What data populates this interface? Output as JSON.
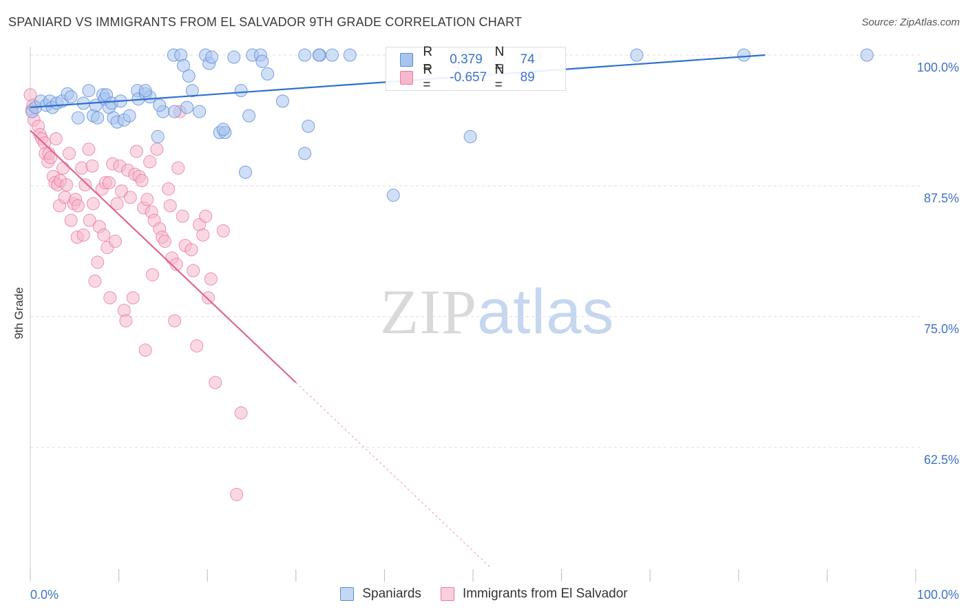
{
  "title": "SPANIARD VS IMMIGRANTS FROM EL SALVADOR 9TH GRADE CORRELATION CHART",
  "source": "Source: ZipAtlas.com",
  "watermark": {
    "zip": "ZIP",
    "atlas": "atlas"
  },
  "legend": {
    "r_label": "R =",
    "n_label": "N =",
    "series1": {
      "r": "0.379",
      "n": "74"
    },
    "series2": {
      "r": "-0.657",
      "n": "89"
    }
  },
  "bottom_legend": {
    "series1": "Spaniards",
    "series2": "Immigrants from El Salvador"
  },
  "colors": {
    "blue_fill": "#a9c5ef",
    "blue_stroke": "#5a8bd6",
    "blue_line": "#2f6fd0",
    "pink_fill": "#f6b8cc",
    "pink_stroke": "#e8799e",
    "pink_line": "#e0648f",
    "grid": "#dddddd",
    "tick_text": "#3f72c8"
  },
  "chart_data": {
    "type": "scatter",
    "title": "SPANIARD VS IMMIGRANTS FROM EL SALVADOR 9TH GRADE CORRELATION CHART",
    "xlabel": "",
    "ylabel": "9th Grade",
    "xlim": [
      0,
      100
    ],
    "ylim": [
      50.5,
      101.5
    ],
    "x_tick_labels": [
      "0.0%",
      "100.0%"
    ],
    "y_ticks": [
      62.5,
      75.0,
      87.5,
      100.0
    ],
    "y_tick_labels": [
      "62.5%",
      "75.0%",
      "87.5%",
      "100.0%"
    ],
    "grid": true,
    "legend_position": "top-center",
    "series": [
      {
        "name": "Spaniards",
        "r": 0.379,
        "n": 74,
        "trend": {
          "x": [
            0,
            83
          ],
          "y": [
            95.0,
            100.0
          ]
        },
        "points": [
          [
            0.2,
            94.6
          ],
          [
            0.6,
            95.0
          ],
          [
            1.2,
            95.6
          ],
          [
            1.8,
            95.2
          ],
          [
            2.2,
            95.6
          ],
          [
            2.5,
            95.0
          ],
          [
            3.0,
            95.4
          ],
          [
            3.6,
            95.6
          ],
          [
            4.2,
            96.3
          ],
          [
            4.6,
            96.0
          ],
          [
            5.4,
            94.0
          ],
          [
            6.0,
            95.4
          ],
          [
            6.6,
            96.6
          ],
          [
            7.1,
            94.2
          ],
          [
            7.4,
            95.2
          ],
          [
            7.6,
            94.0
          ],
          [
            8.2,
            96.2
          ],
          [
            8.4,
            95.8
          ],
          [
            8.6,
            96.2
          ],
          [
            8.9,
            95.0
          ],
          [
            9.2,
            95.4
          ],
          [
            9.4,
            94.0
          ],
          [
            9.8,
            93.6
          ],
          [
            10.2,
            95.6
          ],
          [
            10.6,
            93.8
          ],
          [
            11.2,
            94.2
          ],
          [
            12.1,
            96.6
          ],
          [
            12.2,
            95.8
          ],
          [
            13.0,
            96.3
          ],
          [
            13.5,
            96.0
          ],
          [
            13.0,
            96.6
          ],
          [
            15.0,
            94.6
          ],
          [
            14.4,
            92.2
          ],
          [
            14.6,
            95.2
          ],
          [
            16.2,
            100.0
          ],
          [
            17.0,
            100.0
          ],
          [
            16.3,
            94.6
          ],
          [
            17.3,
            99.0
          ],
          [
            17.9,
            98.0
          ],
          [
            18.3,
            96.6
          ],
          [
            17.7,
            95.0
          ],
          [
            19.1,
            94.6
          ],
          [
            19.8,
            100.0
          ],
          [
            20.2,
            99.2
          ],
          [
            20.5,
            99.8
          ],
          [
            21.4,
            92.6
          ],
          [
            22.0,
            92.6
          ],
          [
            21.8,
            92.9
          ],
          [
            23.0,
            99.8
          ],
          [
            23.8,
            96.6
          ],
          [
            24.3,
            88.8
          ],
          [
            24.7,
            94.2
          ],
          [
            25.1,
            100.0
          ],
          [
            26.0,
            100.0
          ],
          [
            26.2,
            99.4
          ],
          [
            26.8,
            98.2
          ],
          [
            28.5,
            95.6
          ],
          [
            31.0,
            100.0
          ],
          [
            31.4,
            93.2
          ],
          [
            31.0,
            90.6
          ],
          [
            32.7,
            100.0
          ],
          [
            32.6,
            100.0
          ],
          [
            34.1,
            100.0
          ],
          [
            36.1,
            100.0
          ],
          [
            41.0,
            86.6
          ],
          [
            48.0,
            99.4
          ],
          [
            49.0,
            99.0
          ],
          [
            53.0,
            99.4
          ],
          [
            49.5,
            100.0
          ],
          [
            49.7,
            92.2
          ],
          [
            57.0,
            100.0
          ],
          [
            68.5,
            100.0
          ],
          [
            80.6,
            100.0
          ],
          [
            94.5,
            100.0
          ]
        ]
      },
      {
        "name": "Immigrants from El Salvador",
        "r": -0.657,
        "n": 89,
        "trend": {
          "x": [
            0,
            30
          ],
          "y": [
            92.8,
            68.7
          ]
        },
        "trend_dashed": {
          "x": [
            30,
            52
          ],
          "y": [
            68.7,
            51.0
          ]
        },
        "points": [
          [
            0.0,
            96.2
          ],
          [
            0.2,
            94.8
          ],
          [
            0.3,
            95.2
          ],
          [
            0.4,
            93.8
          ],
          [
            0.9,
            93.2
          ],
          [
            1.1,
            92.4
          ],
          [
            1.3,
            92.0
          ],
          [
            1.6,
            91.6
          ],
          [
            1.7,
            90.6
          ],
          [
            2.0,
            89.8
          ],
          [
            2.1,
            90.6
          ],
          [
            2.3,
            90.2
          ],
          [
            2.6,
            88.4
          ],
          [
            2.8,
            87.8
          ],
          [
            2.9,
            92.0
          ],
          [
            3.1,
            87.6
          ],
          [
            3.3,
            85.6
          ],
          [
            3.4,
            88.0
          ],
          [
            3.7,
            89.2
          ],
          [
            3.9,
            86.4
          ],
          [
            4.1,
            87.6
          ],
          [
            4.4,
            90.6
          ],
          [
            4.6,
            84.2
          ],
          [
            4.9,
            85.8
          ],
          [
            5.1,
            86.2
          ],
          [
            5.4,
            85.6
          ],
          [
            5.3,
            82.6
          ],
          [
            5.8,
            89.2
          ],
          [
            6.0,
            82.8
          ],
          [
            6.2,
            87.6
          ],
          [
            6.6,
            91.0
          ],
          [
            6.7,
            84.2
          ],
          [
            7.0,
            89.4
          ],
          [
            7.1,
            85.8
          ],
          [
            7.3,
            78.4
          ],
          [
            7.6,
            80.2
          ],
          [
            7.8,
            83.6
          ],
          [
            8.1,
            87.2
          ],
          [
            8.3,
            82.8
          ],
          [
            8.5,
            87.8
          ],
          [
            8.7,
            81.6
          ],
          [
            8.9,
            87.8
          ],
          [
            9.0,
            76.8
          ],
          [
            9.3,
            89.6
          ],
          [
            9.6,
            82.2
          ],
          [
            9.8,
            85.8
          ],
          [
            10.1,
            89.4
          ],
          [
            10.3,
            87.0
          ],
          [
            10.6,
            75.6
          ],
          [
            10.8,
            74.6
          ],
          [
            11.0,
            89.0
          ],
          [
            11.3,
            86.4
          ],
          [
            11.6,
            76.8
          ],
          [
            11.8,
            88.6
          ],
          [
            12.0,
            90.8
          ],
          [
            12.3,
            88.4
          ],
          [
            12.6,
            88.0
          ],
          [
            12.8,
            85.4
          ],
          [
            13.0,
            71.8
          ],
          [
            13.2,
            86.2
          ],
          [
            13.5,
            89.8
          ],
          [
            13.7,
            85.0
          ],
          [
            13.8,
            79.0
          ],
          [
            14.0,
            84.2
          ],
          [
            14.3,
            91.0
          ],
          [
            14.6,
            83.4
          ],
          [
            14.9,
            82.6
          ],
          [
            15.2,
            82.2
          ],
          [
            15.6,
            87.2
          ],
          [
            15.8,
            85.6
          ],
          [
            16.0,
            80.6
          ],
          [
            16.3,
            74.6
          ],
          [
            16.5,
            80.0
          ],
          [
            16.7,
            89.2
          ],
          [
            16.9,
            94.6
          ],
          [
            17.2,
            84.6
          ],
          [
            17.5,
            81.8
          ],
          [
            18.2,
            81.4
          ],
          [
            18.4,
            79.4
          ],
          [
            18.8,
            72.2
          ],
          [
            19.1,
            83.8
          ],
          [
            19.5,
            82.8
          ],
          [
            19.8,
            84.6
          ],
          [
            20.1,
            76.8
          ],
          [
            20.4,
            78.6
          ],
          [
            20.9,
            68.7
          ],
          [
            21.8,
            83.2
          ],
          [
            23.8,
            65.8
          ],
          [
            23.3,
            58.0
          ]
        ]
      }
    ]
  }
}
